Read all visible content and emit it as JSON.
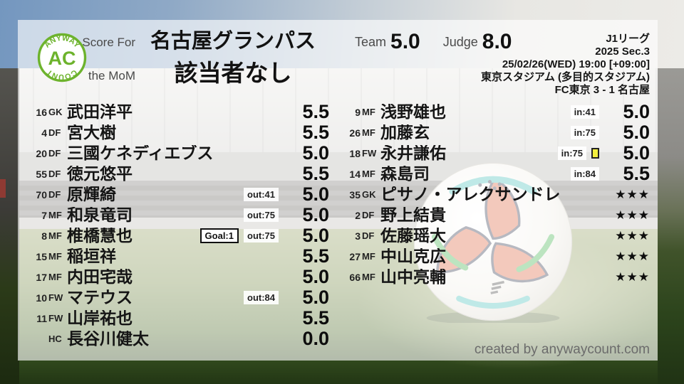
{
  "branding": {
    "logo_top": "ANYWAY",
    "logo_center": "AC",
    "logo_bottom": "COUNT"
  },
  "colors": {
    "accent_green": "#6db32d",
    "yellow_card": "#f3ef3d",
    "text_dark": "#151515",
    "label_gray": "#4a4a4a"
  },
  "header": {
    "score_for_label": "Score For",
    "team_name": "名古屋グランパス",
    "mom_label": "the MoM",
    "mom_name": "該当者なし",
    "team_label": "Team",
    "team_score": "5.0",
    "judge_label": "Judge",
    "judge_score": "8.0"
  },
  "match_info": {
    "league": "J1リーグ",
    "season": "2025 Sec.3",
    "kickoff": "25/02/26(WED) 19:00 [+09:00]",
    "venue": "東京スタジアム (多目的スタジアム)",
    "result": "FC東京 3 - 1 名古屋"
  },
  "players": {
    "left": [
      {
        "num": "16",
        "pos": "GK",
        "name": "武田洋平",
        "badges": [],
        "rating": "5.5"
      },
      {
        "num": "4",
        "pos": "DF",
        "name": "宮大樹",
        "badges": [],
        "rating": "5.5"
      },
      {
        "num": "20",
        "pos": "DF",
        "name": "三國ケネディエブス",
        "badges": [],
        "rating": "5.0"
      },
      {
        "num": "55",
        "pos": "DF",
        "name": "徳元悠平",
        "badges": [],
        "rating": "5.5"
      },
      {
        "num": "70",
        "pos": "DF",
        "name": "原輝綺",
        "badges": [
          {
            "type": "sub",
            "text": "out:41"
          }
        ],
        "rating": "5.0"
      },
      {
        "num": "7",
        "pos": "MF",
        "name": "和泉竜司",
        "badges": [
          {
            "type": "sub",
            "text": "out:75"
          }
        ],
        "rating": "5.0"
      },
      {
        "num": "8",
        "pos": "MF",
        "name": "椎橋慧也",
        "badges": [
          {
            "type": "goal",
            "text": "Goal:1"
          },
          {
            "type": "sub",
            "text": "out:75"
          }
        ],
        "rating": "5.0"
      },
      {
        "num": "15",
        "pos": "MF",
        "name": "稲垣祥",
        "badges": [],
        "rating": "5.5"
      },
      {
        "num": "17",
        "pos": "MF",
        "name": "内田宅哉",
        "badges": [],
        "rating": "5.0"
      },
      {
        "num": "10",
        "pos": "FW",
        "name": "マテウス",
        "badges": [
          {
            "type": "sub",
            "text": "out:84"
          }
        ],
        "rating": "5.0"
      },
      {
        "num": "11",
        "pos": "FW",
        "name": "山岸祐也",
        "badges": [],
        "rating": "5.5"
      },
      {
        "num": "",
        "pos": "HC",
        "name": "長谷川健太",
        "badges": [],
        "rating": "0.0"
      }
    ],
    "right": [
      {
        "num": "9",
        "pos": "MF",
        "name": "浅野雄也",
        "badges": [
          {
            "type": "sub",
            "text": "in:41"
          }
        ],
        "rating": "5.0"
      },
      {
        "num": "26",
        "pos": "MF",
        "name": "加藤玄",
        "badges": [
          {
            "type": "sub",
            "text": "in:75"
          }
        ],
        "rating": "5.0"
      },
      {
        "num": "18",
        "pos": "FW",
        "name": "永井謙佑",
        "badges": [
          {
            "type": "sub",
            "text": "in:75"
          },
          {
            "type": "card",
            "text": ""
          }
        ],
        "rating": "5.0"
      },
      {
        "num": "14",
        "pos": "MF",
        "name": "森島司",
        "badges": [
          {
            "type": "sub",
            "text": "in:84"
          }
        ],
        "rating": "5.5"
      },
      {
        "num": "35",
        "pos": "GK",
        "name": "ピサノ・アレクサンドレ",
        "badges": [],
        "rating": "★★★",
        "stars": true
      },
      {
        "num": "2",
        "pos": "DF",
        "name": "野上結貴",
        "badges": [],
        "rating": "★★★",
        "stars": true
      },
      {
        "num": "3",
        "pos": "DF",
        "name": "佐藤瑶大",
        "badges": [],
        "rating": "★★★",
        "stars": true
      },
      {
        "num": "27",
        "pos": "MF",
        "name": "中山克広",
        "badges": [],
        "rating": "★★★",
        "stars": true
      },
      {
        "num": "66",
        "pos": "MF",
        "name": "山中亮輔",
        "badges": [],
        "rating": "★★★",
        "stars": true
      }
    ]
  },
  "footer": {
    "credit": "created by anywaycount.com"
  }
}
